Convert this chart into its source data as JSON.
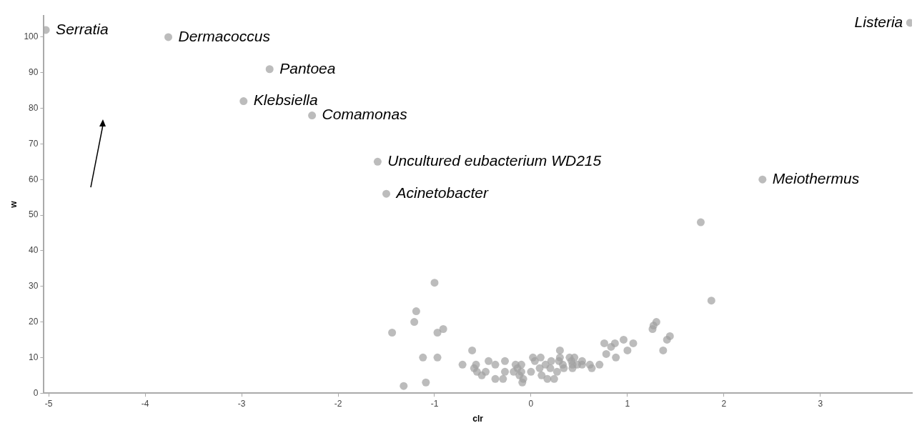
{
  "chart_data": {
    "type": "scatter",
    "xlabel": "clr",
    "ylabel": "w",
    "xlim": [
      -5.05,
      3.95
    ],
    "ylim": [
      0,
      106
    ],
    "xticks": [
      -5,
      -4,
      -3,
      -2,
      -1,
      0,
      1,
      2,
      3
    ],
    "yticks": [
      0,
      10,
      20,
      30,
      40,
      50,
      60,
      70,
      80,
      90,
      100
    ],
    "grid": false,
    "legend": false,
    "marker": "circle",
    "series": [
      {
        "color": "#a0a0a0",
        "x": [
          -5.03,
          -3.76,
          -2.71,
          -2.98,
          -2.27,
          -1.59,
          -1.5,
          3.93,
          2.4,
          1.76,
          1.87,
          -1.0,
          -1.19,
          -1.21,
          -1.44,
          -0.97,
          -0.91,
          -1.12,
          -0.97,
          -1.32,
          -1.09,
          -0.61,
          -0.71,
          -0.57,
          -0.59,
          -0.56,
          -0.51,
          -0.44,
          -0.47,
          -0.37,
          -0.37,
          -0.29,
          -0.27,
          -0.27,
          -0.18,
          -0.16,
          -0.14,
          -0.1,
          -0.12,
          -0.08,
          -0.09,
          -0.1,
          0.0,
          0.02,
          0.04,
          0.1,
          0.09,
          0.11,
          0.15,
          0.17,
          0.24,
          0.21,
          0.2,
          0.27,
          0.3,
          0.3,
          0.33,
          0.34,
          0.29,
          0.4,
          0.42,
          0.43,
          0.43,
          0.45,
          0.48,
          0.53,
          0.53,
          0.61,
          0.63,
          0.71,
          0.76,
          0.78,
          0.83,
          0.87,
          0.88,
          0.96,
          1.0,
          1.06,
          1.3,
          1.27,
          1.26,
          1.44,
          1.41,
          1.37
        ],
        "values": [
          102,
          100,
          91,
          82,
          78,
          65,
          56,
          104,
          60,
          48,
          26,
          31,
          23,
          20,
          17,
          17,
          18,
          10,
          10,
          2,
          3,
          12,
          8,
          8,
          7,
          6,
          5,
          9,
          6,
          8,
          4,
          4,
          9,
          6,
          6,
          8,
          7,
          8,
          5,
          4,
          3,
          6,
          6,
          10,
          9,
          10,
          7,
          5,
          8,
          4,
          4,
          9,
          7,
          6,
          12,
          10,
          8,
          7,
          9,
          10,
          9,
          8,
          7,
          10,
          8,
          9,
          8,
          8,
          7,
          8,
          14,
          11,
          13,
          14,
          10,
          15,
          12,
          14,
          20,
          19,
          18,
          16,
          15,
          12
        ]
      }
    ],
    "annotations": [
      {
        "text": "Serratia",
        "x": -5.03,
        "y": 102
      },
      {
        "text": "Dermacoccus",
        "x": -3.76,
        "y": 100
      },
      {
        "text": "Pantoea",
        "x": -2.71,
        "y": 91
      },
      {
        "text": "Klebsiella",
        "x": -2.98,
        "y": 82
      },
      {
        "text": "Comamonas",
        "x": -2.27,
        "y": 78
      },
      {
        "text": "Uncultured eubacterium WD215",
        "x": -1.59,
        "y": 65
      },
      {
        "text": "Acinetobacter",
        "x": -1.5,
        "y": 56
      },
      {
        "text": "Listeria",
        "x": 3.93,
        "y": 104
      },
      {
        "text": "Meiothermus",
        "x": 2.4,
        "y": 60
      }
    ]
  }
}
